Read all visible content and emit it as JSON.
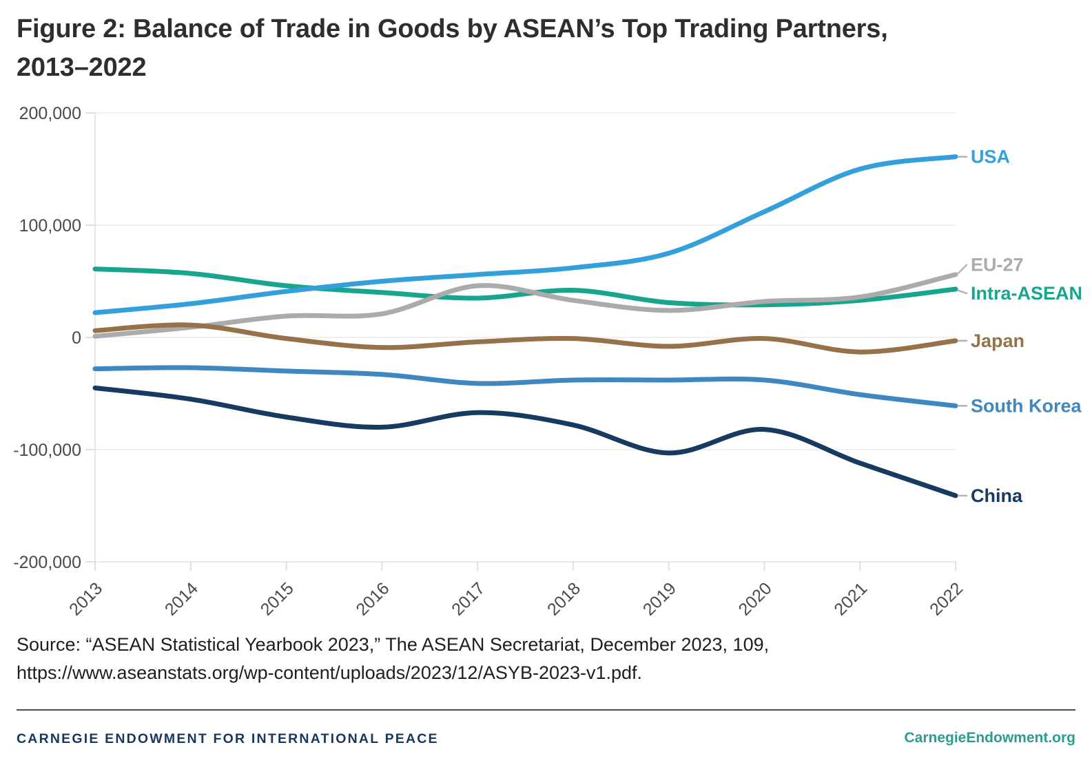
{
  "title": {
    "line1": "Figure 2: Balance of Trade in Goods by ASEAN’s Top Trading Partners,",
    "line2": "2013–2022"
  },
  "chart_data": {
    "type": "line",
    "x": [
      2013,
      2014,
      2015,
      2016,
      2017,
      2018,
      2019,
      2020,
      2021,
      2022
    ],
    "series": [
      {
        "name": "USA",
        "color": "#33a0dc",
        "values": [
          22000,
          30000,
          41000,
          50000,
          56000,
          62000,
          75000,
          112000,
          150000,
          161000
        ]
      },
      {
        "name": "EU-27",
        "color": "#ababab",
        "values": [
          1000,
          9000,
          19000,
          21000,
          46000,
          33000,
          24000,
          32000,
          36000,
          56000
        ]
      },
      {
        "name": "Intra-ASEAN",
        "color": "#18a58d",
        "values": [
          61000,
          57000,
          46000,
          40000,
          35000,
          42000,
          31000,
          29000,
          33000,
          43000
        ]
      },
      {
        "name": "Japan",
        "color": "#967149",
        "values": [
          6000,
          11000,
          -1000,
          -9000,
          -4000,
          -1000,
          -8000,
          -1000,
          -13000,
          -3000
        ]
      },
      {
        "name": "South Korea",
        "color": "#3f87c1",
        "values": [
          -28000,
          -27000,
          -30000,
          -33000,
          -41000,
          -38000,
          -38000,
          -38000,
          -51000,
          -61000
        ]
      },
      {
        "name": "China",
        "color": "#173a60",
        "values": [
          -45000,
          -55000,
          -71000,
          -80000,
          -67000,
          -78000,
          -103000,
          -82000,
          -112000,
          -141000
        ]
      }
    ],
    "ylim": [
      -200000,
      200000
    ],
    "yticks": [
      200000,
      100000,
      0,
      -100000,
      -200000
    ],
    "grid": true,
    "legend_position": "right-end-labels",
    "colors": {
      "grid": "#ececec",
      "axis": "#e0e0e0",
      "axis_text": "#4a4a4a",
      "leader": "#b3b3b3"
    }
  },
  "source": {
    "line1": "Source: “ASEAN Statistical Yearbook 2023,” The ASEAN Secretariat, December 2023, 109,",
    "line2": "https://www.aseanstats.org/wp-content/uploads/2023/12/ASYB-2023-v1.pdf."
  },
  "footer": {
    "left": "CARNEGIE ENDOWMENT FOR INTERNATIONAL PEACE",
    "right": "CarnegieEndowment.org"
  }
}
